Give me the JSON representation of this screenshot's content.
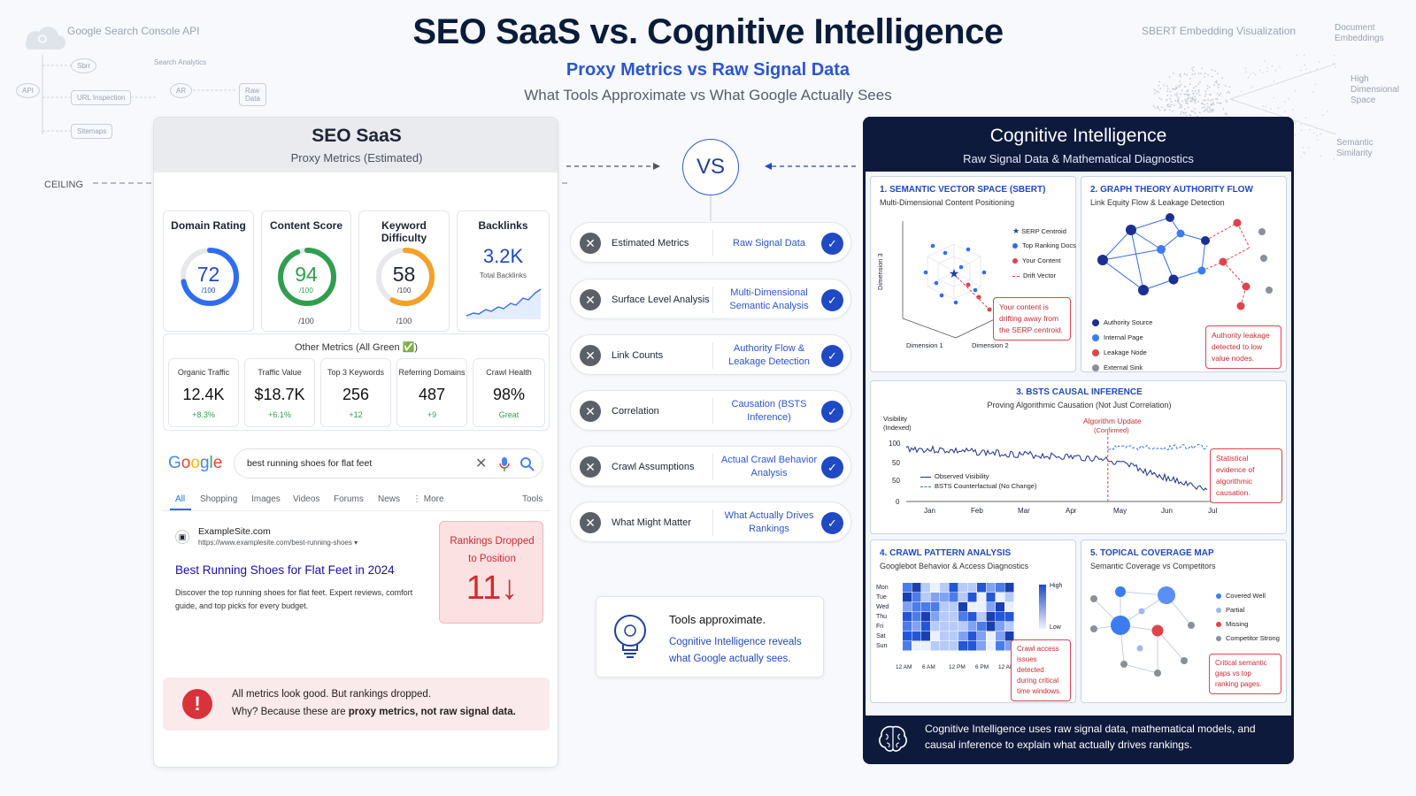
{
  "header": {
    "title": "SEO SaaS vs. Cognitive Intelligence",
    "subtitle": "Proxy Metrics vs Raw Signal Data",
    "tagline": "What Tools Approximate vs What Google Actually Sees"
  },
  "background": {
    "api_title": "Google Search Console API",
    "search_analytics": "Search Analytics",
    "nodes": [
      "Sbrr",
      "URL Inspection",
      "Sitemaps",
      "Raw Data",
      "AR",
      "API"
    ],
    "sbert_title": "SBERT Embedding Visualization",
    "doc_embeddings": "Document Embeddings",
    "high_dim": "High Dimensional Space",
    "semantic_similarity": "Semantic Similarity",
    "ceiling": "CEILING"
  },
  "left": {
    "title": "SEO SaaS",
    "subtitle": "Proxy Metrics (Estimated)",
    "gauges": [
      {
        "label": "Domain Rating",
        "value": "72",
        "unit": "/100",
        "fraction": 0.72,
        "color": "#2f6df0"
      },
      {
        "label": "Content Score",
        "value": "94",
        "unit": "/100",
        "below": "/100",
        "fraction": 0.94,
        "color": "#2f9e4f"
      },
      {
        "label": "Keyword Difficulty",
        "value": "58",
        "unit": "/100",
        "below": "/100",
        "fraction": 0.58,
        "color": "#f3a128"
      }
    ],
    "backlinks": {
      "label": "Backlinks",
      "value": "3.2K",
      "caption": "Total Backlinks"
    },
    "other_title": "Other Metrics (All Green ✅)",
    "other_metrics": [
      {
        "label": "Organic Traffic",
        "value": "12.4K",
        "delta": "+8.3%"
      },
      {
        "label": "Traffic Value",
        "value": "$18.7K",
        "delta": "+6.1%"
      },
      {
        "label": "Top 3 Keywords",
        "value": "256",
        "delta": "+12"
      },
      {
        "label": "Referring Domains",
        "value": "487",
        "delta": "+9"
      },
      {
        "label": "Crawl Health",
        "value": "98%",
        "delta": "Great"
      }
    ],
    "google": {
      "logo": "Google",
      "query": "best running shoes for flat feet",
      "tabs": [
        "All",
        "Shopping",
        "Images",
        "Videos",
        "Forums",
        "News",
        "⋮ More",
        "Tools"
      ],
      "site": "ExampleSite.com",
      "url": "https://www.examplesite.com/best-running-shoes ▾",
      "result_title": "Best Running Shoes for Flat Feet in 2024",
      "snippet": "Discover the top running shoes for flat feet. Expert reviews, comfort guide, and top picks for every budget.",
      "rank_text": "Rankings Dropped to Position",
      "rank_value": "11↓"
    },
    "alert": {
      "line1": "All metrics look good. But rankings dropped.",
      "line2_a": "Why? Because these are ",
      "line2_b": "proxy metrics, not raw signal data."
    }
  },
  "center": {
    "vs": "VS",
    "rows": [
      {
        "left": "Estimated Metrics",
        "right": "Raw Signal Data"
      },
      {
        "left": "Surface Level Analysis",
        "right": "Multi-Dimensional Semantic Analysis"
      },
      {
        "left": "Link Counts",
        "right": "Authority Flow & Leakage Detection"
      },
      {
        "left": "Correlation",
        "right": "Causation (BSTS Inference)"
      },
      {
        "left": "Crawl Assumptions",
        "right": "Actual Crawl Behavior Analysis"
      },
      {
        "left": "What Might Matter",
        "right": "What Actually Drives Rankings"
      }
    ],
    "box_title": "Tools approximate.",
    "box_body": "Cognitive Intelligence reveals what Google actually sees."
  },
  "right": {
    "title": "Cognitive Intelligence",
    "subtitle": "Raw Signal Data & Mathematical Diagnostics",
    "c1": {
      "title": "1. SEMANTIC VECTOR SPACE (SBERT)",
      "sub": "Multi-Dimensional Content Positioning",
      "axis3": "Dimension 3",
      "axis1": "Dimension 1",
      "axis2": "Dimension 2",
      "legend": [
        "SERP Centroid",
        "Top Ranking Docs",
        "Your Content",
        "Drift Vector"
      ],
      "callout": "Your content is drifting away from the SERP centroid."
    },
    "c2": {
      "title": "2. GRAPH THEORY AUTHORITY FLOW",
      "sub": "Link Equity Flow & Leakage Detection",
      "legend": [
        "Authority Source",
        "Internal Page",
        "Leakage Node",
        "External Sink"
      ],
      "callout": "Authority leakage detected to low value nodes."
    },
    "c3": {
      "title": "3. BSTS CAUSAL INFERENCE",
      "sub": "Proving Algorithmic Causation (Not Just Correlation)",
      "ylabel": "Visibility (Indexed)",
      "yticks": [
        "100",
        "50",
        "50",
        "0"
      ],
      "months": [
        "Jan",
        "Feb",
        "Mar",
        "Apr",
        "May",
        "Jun",
        "Jul"
      ],
      "event": "Algorithm Update",
      "event_sub": "(Confirmed)",
      "legend": [
        "Observed Visibility",
        "BSTS Counterfactual (No Change)"
      ],
      "callout": "Statistical evidence of algorithmic causation."
    },
    "c4": {
      "title": "4. CRAWL PATTERN ANALYSIS",
      "sub": "Googlebot Behavior & Access Diagnostics",
      "days": [
        "Mon",
        "Tue",
        "Wed",
        "Thu",
        "Fri",
        "Sat",
        "Sun"
      ],
      "hours": [
        "12 AM",
        "6 AM",
        "12 PM",
        "6 PM",
        "12 AM"
      ],
      "high": "High",
      "low": "Low",
      "callout": "Crawl access issues detected during critical time windows."
    },
    "c5": {
      "title": "5. TOPICAL COVERAGE MAP",
      "sub": "Semantic Coverage vs Competitors",
      "legend": [
        "Covered Well",
        "Partial",
        "Missing",
        "Competitor Strong"
      ],
      "callout": "Critical semantic gaps vs top ranking pages."
    },
    "footer": "Cognitive Intelligence uses raw signal data, mathematical models, and causal inference to explain what actually drives rankings."
  },
  "colors": {
    "accent": "#2a55d6",
    "navy": "#0e1a3c",
    "red": "#e0434b",
    "green": "#2f9e4f"
  }
}
